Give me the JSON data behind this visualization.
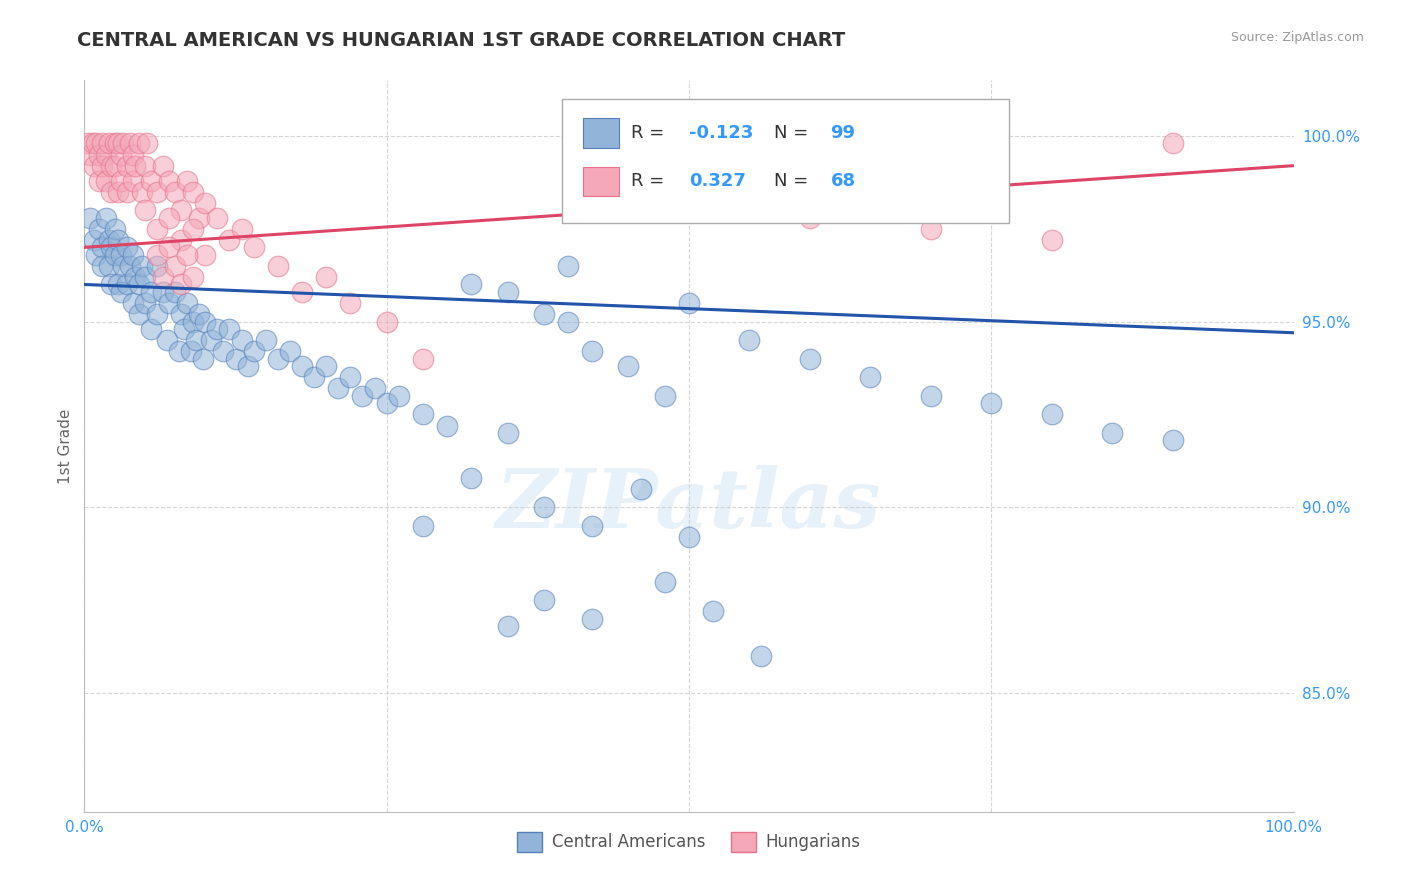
{
  "title": "CENTRAL AMERICAN VS HUNGARIAN 1ST GRADE CORRELATION CHART",
  "source_text": "Source: ZipAtlas.com",
  "ylabel": "1st Grade",
  "xlim": [
    0.0,
    1.0
  ],
  "ylim": [
    0.818,
    1.015
  ],
  "yticks": [
    0.85,
    0.9,
    0.95,
    1.0
  ],
  "ytick_labels": [
    "85.0%",
    "90.0%",
    "95.0%",
    "100.0%"
  ],
  "xticks": [
    0.0,
    0.25,
    0.5,
    0.75,
    1.0
  ],
  "xtick_labels": [
    "0.0%",
    "",
    "",
    "",
    "100.0%"
  ],
  "blue_R": -0.123,
  "blue_N": 99,
  "pink_R": 0.327,
  "pink_N": 68,
  "blue_color": "#92B4D8",
  "pink_color": "#F4A8B8",
  "blue_edge_color": "#5580BB",
  "pink_edge_color": "#E8708A",
  "blue_line_color": "#2255AA",
  "pink_line_color": "#DD4466",
  "legend_blue_label": "Central Americans",
  "legend_pink_label": "Hungarians",
  "watermark_text": "ZIPatlas",
  "background_color": "#ffffff",
  "grid_color": "#cccccc",
  "title_color": "#333333",
  "axis_label_color": "#666666",
  "tick_label_color": "#3399FF",
  "blue_trend_x0": 0.0,
  "blue_trend_x1": 1.0,
  "blue_trend_y0": 0.96,
  "blue_trend_y1": 0.947,
  "pink_trend_x0": 0.0,
  "pink_trend_x1": 1.0,
  "pink_trend_y0": 0.97,
  "pink_trend_y1": 0.992,
  "blue_scatter_x": [
    0.005,
    0.008,
    0.01,
    0.012,
    0.015,
    0.015,
    0.018,
    0.02,
    0.02,
    0.022,
    0.022,
    0.025,
    0.025,
    0.028,
    0.028,
    0.03,
    0.03,
    0.032,
    0.035,
    0.035,
    0.038,
    0.04,
    0.04,
    0.042,
    0.045,
    0.045,
    0.048,
    0.05,
    0.05,
    0.055,
    0.055,
    0.06,
    0.06,
    0.065,
    0.068,
    0.07,
    0.075,
    0.078,
    0.08,
    0.082,
    0.085,
    0.088,
    0.09,
    0.092,
    0.095,
    0.098,
    0.1,
    0.105,
    0.11,
    0.115,
    0.12,
    0.125,
    0.13,
    0.135,
    0.14,
    0.15,
    0.16,
    0.17,
    0.18,
    0.19,
    0.2,
    0.21,
    0.22,
    0.23,
    0.24,
    0.25,
    0.26,
    0.28,
    0.3,
    0.32,
    0.35,
    0.38,
    0.4,
    0.35,
    0.4,
    0.42,
    0.45,
    0.48,
    0.5,
    0.32,
    0.55,
    0.6,
    0.65,
    0.7,
    0.75,
    0.8,
    0.85,
    0.9,
    0.28,
    0.38,
    0.42,
    0.46,
    0.5,
    0.35,
    0.38,
    0.42,
    0.48,
    0.52,
    0.56
  ],
  "blue_scatter_y": [
    0.978,
    0.972,
    0.968,
    0.975,
    0.97,
    0.965,
    0.978,
    0.972,
    0.965,
    0.97,
    0.96,
    0.975,
    0.968,
    0.972,
    0.96,
    0.968,
    0.958,
    0.965,
    0.97,
    0.96,
    0.965,
    0.968,
    0.955,
    0.962,
    0.96,
    0.952,
    0.965,
    0.962,
    0.955,
    0.958,
    0.948,
    0.965,
    0.952,
    0.958,
    0.945,
    0.955,
    0.958,
    0.942,
    0.952,
    0.948,
    0.955,
    0.942,
    0.95,
    0.945,
    0.952,
    0.94,
    0.95,
    0.945,
    0.948,
    0.942,
    0.948,
    0.94,
    0.945,
    0.938,
    0.942,
    0.945,
    0.94,
    0.942,
    0.938,
    0.935,
    0.938,
    0.932,
    0.935,
    0.93,
    0.932,
    0.928,
    0.93,
    0.925,
    0.922,
    0.96,
    0.958,
    0.952,
    0.965,
    0.92,
    0.95,
    0.942,
    0.938,
    0.93,
    0.955,
    0.908,
    0.945,
    0.94,
    0.935,
    0.93,
    0.928,
    0.925,
    0.92,
    0.918,
    0.895,
    0.9,
    0.895,
    0.905,
    0.892,
    0.868,
    0.875,
    0.87,
    0.88,
    0.872,
    0.86
  ],
  "pink_scatter_x": [
    0.003,
    0.005,
    0.007,
    0.008,
    0.01,
    0.012,
    0.012,
    0.015,
    0.015,
    0.018,
    0.018,
    0.02,
    0.022,
    0.022,
    0.025,
    0.025,
    0.028,
    0.028,
    0.03,
    0.03,
    0.032,
    0.035,
    0.035,
    0.038,
    0.04,
    0.04,
    0.042,
    0.045,
    0.048,
    0.05,
    0.052,
    0.055,
    0.06,
    0.065,
    0.07,
    0.075,
    0.08,
    0.085,
    0.09,
    0.095,
    0.1,
    0.11,
    0.12,
    0.13,
    0.14,
    0.16,
    0.18,
    0.2,
    0.22,
    0.25,
    0.28,
    0.05,
    0.06,
    0.07,
    0.08,
    0.09,
    0.1,
    0.06,
    0.065,
    0.07,
    0.075,
    0.08,
    0.085,
    0.09,
    0.6,
    0.7,
    0.8,
    0.9
  ],
  "pink_scatter_y": [
    0.998,
    0.995,
    0.998,
    0.992,
    0.998,
    0.995,
    0.988,
    0.998,
    0.992,
    0.995,
    0.988,
    0.998,
    0.992,
    0.985,
    0.998,
    0.992,
    0.998,
    0.985,
    0.995,
    0.988,
    0.998,
    0.992,
    0.985,
    0.998,
    0.995,
    0.988,
    0.992,
    0.998,
    0.985,
    0.992,
    0.998,
    0.988,
    0.985,
    0.992,
    0.988,
    0.985,
    0.98,
    0.988,
    0.985,
    0.978,
    0.982,
    0.978,
    0.972,
    0.975,
    0.97,
    0.965,
    0.958,
    0.962,
    0.955,
    0.95,
    0.94,
    0.98,
    0.975,
    0.978,
    0.972,
    0.975,
    0.968,
    0.968,
    0.962,
    0.97,
    0.965,
    0.96,
    0.968,
    0.962,
    0.978,
    0.975,
    0.972,
    0.998
  ]
}
